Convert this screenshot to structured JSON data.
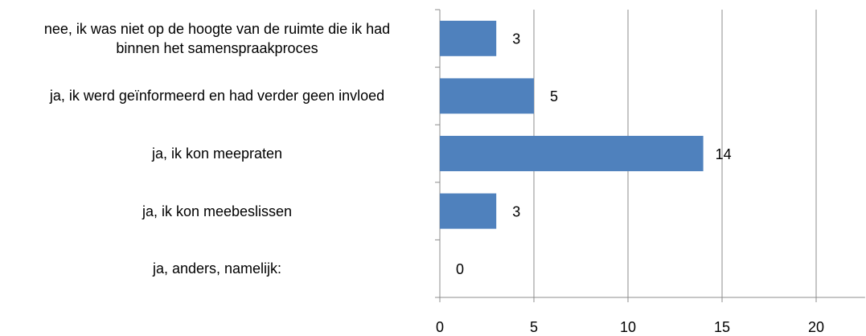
{
  "chart_data": {
    "type": "bar",
    "orientation": "horizontal",
    "categories": [
      "nee, ik was niet op de hoogte van de ruimte die ik had binnen het samenspraakproces",
      "ja, ik werd geïnformeerd en had verder geen invloed",
      "ja, ik kon meepraten",
      "ja, ik kon meebeslissen",
      "ja, anders, namelijk:"
    ],
    "values": [
      3,
      5,
      14,
      3,
      0
    ],
    "color": "#4f81bd",
    "xlim": [
      0,
      22.6
    ],
    "xticks": [
      0,
      5,
      10,
      15,
      20
    ],
    "grid": true
  }
}
